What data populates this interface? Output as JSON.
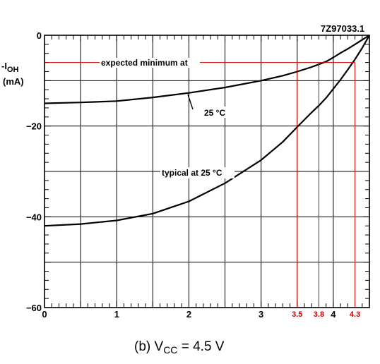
{
  "chart_data": {
    "type": "line",
    "code": "7Z97033.1",
    "ylabel_main": "-I",
    "ylabel_sub": "OH",
    "ylabel_unit": "(mA)",
    "caption_prefix": "(b) V",
    "caption_sub": "CC",
    "caption_suffix": " = 4.5 V",
    "xlim": [
      0,
      4.5
    ],
    "ylim": [
      -60,
      0
    ],
    "x_ticks": [
      {
        "v": 0,
        "label": "0"
      },
      {
        "v": 1,
        "label": "1"
      },
      {
        "v": 2,
        "label": "2"
      },
      {
        "v": 3,
        "label": "3"
      },
      {
        "v": 4,
        "label": "4"
      }
    ],
    "y_ticks": [
      {
        "v": 0,
        "label": "0"
      },
      {
        "v": -20,
        "label": "−20"
      },
      {
        "v": -40,
        "label": "−40"
      },
      {
        "v": -60,
        "label": "−60"
      }
    ],
    "red_ticks": [
      {
        "v": 3.5,
        "label": "3.5"
      },
      {
        "v": 3.8,
        "label": "3.8"
      },
      {
        "v": 4.3,
        "label": "4.3"
      }
    ],
    "annotations": {
      "expected": "expected minimum at",
      "expected_25c": "25 °C",
      "typical": "typical at 25 °C"
    },
    "reference_line_y": -6,
    "reference_color": "#cc0000",
    "series": [
      {
        "key": "expected",
        "x": [
          0,
          0.5,
          1.0,
          1.5,
          2.0,
          2.5,
          3.0,
          3.3,
          3.5,
          3.7,
          3.8,
          3.9,
          4.0,
          4.1,
          4.2,
          4.3,
          4.4,
          4.5
        ],
        "y": [
          -15,
          -14.8,
          -14.5,
          -13.7,
          -12.7,
          -11.5,
          -10.0,
          -8.9,
          -8.0,
          -7.0,
          -6.4,
          -5.8,
          -4.9,
          -3.9,
          -3.0,
          -2.0,
          -1.0,
          0
        ]
      },
      {
        "key": "typical",
        "x": [
          0,
          0.5,
          1.0,
          1.5,
          2.0,
          2.5,
          3.0,
          3.3,
          3.5,
          3.7,
          3.8,
          3.9,
          4.0,
          4.1,
          4.2,
          4.3,
          4.4,
          4.5
        ],
        "y": [
          -42,
          -41.6,
          -40.8,
          -39.3,
          -36.6,
          -32.6,
          -27.5,
          -23.5,
          -20.2,
          -17.0,
          -15.5,
          -13.8,
          -11.8,
          -9.8,
          -7.6,
          -5.3,
          -2.8,
          0
        ]
      }
    ]
  }
}
